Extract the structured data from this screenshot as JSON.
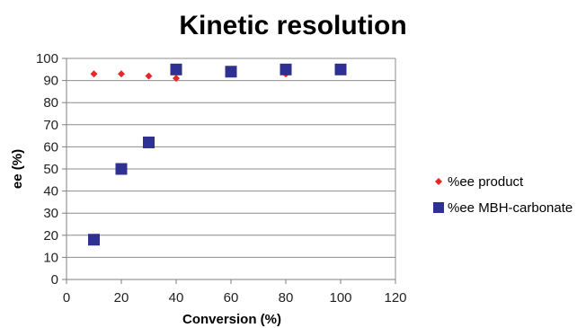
{
  "chart_data": {
    "type": "scatter",
    "title": "Kinetic resolution",
    "xlabel": "Conversion (%)",
    "ylabel": "ee (%)",
    "xlim": [
      0,
      120
    ],
    "ylim": [
      0,
      100
    ],
    "x_ticks": [
      "0",
      "20",
      "40",
      "60",
      "80",
      "100",
      "120"
    ],
    "y_ticks": [
      "0",
      "10",
      "20",
      "30",
      "40",
      "50",
      "60",
      "70",
      "80",
      "90",
      "100"
    ],
    "grid": "horizontal",
    "legend_position": "right",
    "series": [
      {
        "name": "%ee product",
        "marker": "diamond",
        "color": "#e8262a",
        "points": [
          {
            "x": 10,
            "y": 93
          },
          {
            "x": 20,
            "y": 93
          },
          {
            "x": 30,
            "y": 92
          },
          {
            "x": 40,
            "y": 91
          },
          {
            "x": 60,
            "y": 93
          },
          {
            "x": 80,
            "y": 93
          },
          {
            "x": 100,
            "y": 94
          }
        ]
      },
      {
        "name": "%ee MBH-carbonate",
        "marker": "square",
        "color": "#2e3192",
        "points": [
          {
            "x": 10,
            "y": 18
          },
          {
            "x": 20,
            "y": 50
          },
          {
            "x": 30,
            "y": 62
          },
          {
            "x": 40,
            "y": 95
          },
          {
            "x": 60,
            "y": 94
          },
          {
            "x": 80,
            "y": 95
          },
          {
            "x": 100,
            "y": 95
          }
        ]
      }
    ]
  }
}
